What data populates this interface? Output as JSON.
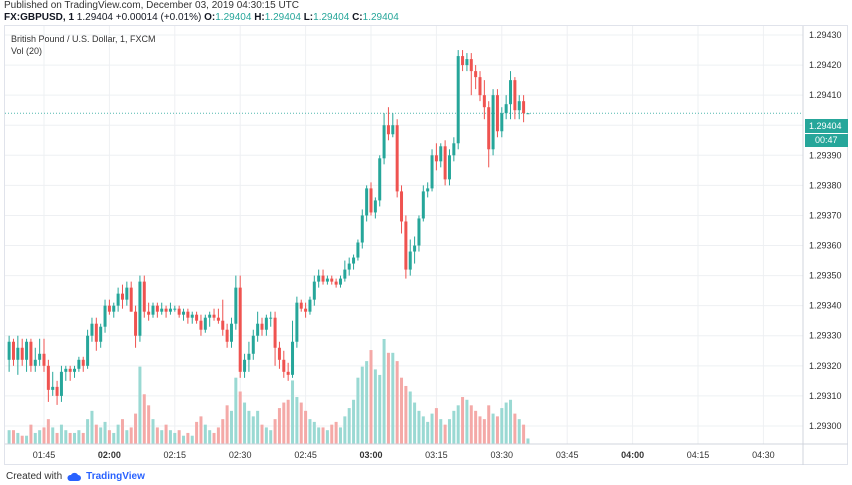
{
  "published": "Published on TradingView.com, December 03, 2019 04:30:15 UTC",
  "quote": {
    "symbol": "FX:GBPUSD, 1",
    "last": "1.29404",
    "change": "+0.00014 (+0.01%)",
    "o_label": "O:",
    "o": "1.29404",
    "h_label": "H:",
    "h": "1.29404",
    "l_label": "L:",
    "l": "1.29404",
    "c_label": "C:",
    "c": "1.29404"
  },
  "footer": {
    "created_with": "Created with",
    "brand": "TradingView"
  },
  "colors": {
    "up": "#26a69a",
    "down": "#ef5350",
    "vol_up": "#9ad9d3",
    "vol_down": "#f4a9a7",
    "grid": "#eef0f3"
  },
  "price_tag": "1.29404",
  "countdown_tag": "00:47",
  "chart_data": {
    "type": "candlestick",
    "title": "British Pound / U.S. Dollar, 1, FXCM",
    "volume_label": "Vol (20)",
    "ylim": [
      1.29294,
      1.29433
    ],
    "y_ticks": [
      "1.29300",
      "1.29310",
      "1.29320",
      "1.29330",
      "1.29340",
      "1.29350",
      "1.29360",
      "1.29370",
      "1.29380",
      "1.29390",
      "1.29400",
      "1.29410",
      "1.29420",
      "1.29430"
    ],
    "x_ticks": [
      {
        "label": "01:45",
        "bold": false,
        "minute": 0
      },
      {
        "label": "02:00",
        "bold": true,
        "minute": 15
      },
      {
        "label": "02:15",
        "bold": false,
        "minute": 30
      },
      {
        "label": "02:30",
        "bold": false,
        "minute": 45
      },
      {
        "label": "02:45",
        "bold": false,
        "minute": 60
      },
      {
        "label": "03:00",
        "bold": true,
        "minute": 75
      },
      {
        "label": "03:15",
        "bold": false,
        "minute": 90
      },
      {
        "label": "03:30",
        "bold": false,
        "minute": 105
      },
      {
        "label": "03:45",
        "bold": false,
        "minute": 120
      },
      {
        "label": "04:00",
        "bold": true,
        "minute": 135
      },
      {
        "label": "04:15",
        "bold": false,
        "minute": 150
      },
      {
        "label": "04:30",
        "bold": false,
        "minute": 165
      }
    ],
    "start_time": "01:37",
    "last_price": 1.29404,
    "candles": [
      [
        1.29322,
        1.2933,
        1.29318,
        1.29328,
        5
      ],
      [
        1.29328,
        1.29329,
        1.2932,
        1.29322,
        5
      ],
      [
        1.29322,
        1.2933,
        1.29317,
        1.29326,
        4
      ],
      [
        1.29326,
        1.29329,
        1.2932,
        1.29322,
        3
      ],
      [
        1.29322,
        1.29329,
        1.29318,
        1.29328,
        3
      ],
      [
        1.29328,
        1.29329,
        1.29318,
        1.2932,
        7
      ],
      [
        1.2932,
        1.29326,
        1.29318,
        1.29322,
        4
      ],
      [
        1.29322,
        1.29329,
        1.2932,
        1.29324,
        5
      ],
      [
        1.29324,
        1.29329,
        1.29318,
        1.2932,
        6
      ],
      [
        1.2932,
        1.29322,
        1.29308,
        1.29312,
        9
      ],
      [
        1.29312,
        1.29318,
        1.2931,
        1.29313,
        6
      ],
      [
        1.29313,
        1.29315,
        1.29307,
        1.2931,
        4
      ],
      [
        1.2931,
        1.2932,
        1.29308,
        1.29318,
        7
      ],
      [
        1.29318,
        1.2932,
        1.29315,
        1.29319,
        5
      ],
      [
        1.29319,
        1.2932,
        1.29315,
        1.29318,
        4
      ],
      [
        1.29318,
        1.2932,
        1.29316,
        1.29319,
        4
      ],
      [
        1.29319,
        1.29323,
        1.29318,
        1.29322,
        5
      ],
      [
        1.29322,
        1.29323,
        1.29318,
        1.2932,
        4
      ],
      [
        1.2932,
        1.29332,
        1.29319,
        1.2933,
        9
      ],
      [
        1.2933,
        1.29336,
        1.29328,
        1.29334,
        12
      ],
      [
        1.29334,
        1.29336,
        1.29325,
        1.29328,
        7
      ],
      [
        1.29328,
        1.29334,
        1.29326,
        1.29333,
        6
      ],
      [
        1.29333,
        1.29342,
        1.29331,
        1.2934,
        8
      ],
      [
        1.2934,
        1.29342,
        1.29337,
        1.29338,
        5
      ],
      [
        1.29338,
        1.29341,
        1.29336,
        1.2934,
        4
      ],
      [
        1.2934,
        1.29346,
        1.29338,
        1.29344,
        7
      ],
      [
        1.29344,
        1.29347,
        1.29339,
        1.29342,
        9
      ],
      [
        1.29342,
        1.29348,
        1.2934,
        1.29346,
        5
      ],
      [
        1.29346,
        1.29348,
        1.29338,
        1.29338,
        6
      ],
      [
        1.29338,
        1.2934,
        1.29326,
        1.2933,
        11
      ],
      [
        1.2933,
        1.2935,
        1.29328,
        1.29348,
        28
      ],
      [
        1.29348,
        1.2935,
        1.29336,
        1.29338,
        18
      ],
      [
        1.29338,
        1.29341,
        1.29335,
        1.29337,
        14
      ],
      [
        1.29337,
        1.29341,
        1.29336,
        1.2934,
        9
      ],
      [
        1.2934,
        1.29341,
        1.29336,
        1.29338,
        6
      ],
      [
        1.29338,
        1.29341,
        1.29337,
        1.29339,
        5
      ],
      [
        1.29339,
        1.2934,
        1.29336,
        1.29338,
        7
      ],
      [
        1.29338,
        1.29341,
        1.29337,
        1.29339,
        5
      ],
      [
        1.29339,
        1.2934,
        1.29338,
        1.29339,
        4
      ],
      [
        1.29339,
        1.2934,
        1.29336,
        1.29337,
        5
      ],
      [
        1.29337,
        1.29339,
        1.29335,
        1.29338,
        3
      ],
      [
        1.29338,
        1.29339,
        1.29334,
        1.29336,
        4
      ],
      [
        1.29336,
        1.29338,
        1.29334,
        1.29337,
        3
      ],
      [
        1.29337,
        1.29338,
        1.29334,
        1.29335,
        8
      ],
      [
        1.29335,
        1.29337,
        1.2933,
        1.29332,
        10
      ],
      [
        1.29332,
        1.29337,
        1.29331,
        1.29336,
        7
      ],
      [
        1.29336,
        1.29338,
        1.29333,
        1.29337,
        5
      ],
      [
        1.29337,
        1.29339,
        1.29335,
        1.29336,
        4
      ],
      [
        1.29336,
        1.29339,
        1.29334,
        1.29335,
        6
      ],
      [
        1.29335,
        1.29342,
        1.2933,
        1.29332,
        9
      ],
      [
        1.29332,
        1.29334,
        1.29326,
        1.29328,
        14
      ],
      [
        1.29328,
        1.29336,
        1.29326,
        1.29334,
        12
      ],
      [
        1.29334,
        1.2935,
        1.29332,
        1.29346,
        24
      ],
      [
        1.29346,
        1.2935,
        1.29316,
        1.29318,
        19
      ],
      [
        1.29318,
        1.29324,
        1.29316,
        1.29322,
        15
      ],
      [
        1.29322,
        1.29328,
        1.29318,
        1.29324,
        12
      ],
      [
        1.29324,
        1.29332,
        1.29322,
        1.2933,
        10
      ],
      [
        1.2933,
        1.29338,
        1.29328,
        1.29334,
        12
      ],
      [
        1.29334,
        1.29336,
        1.2933,
        1.29332,
        7
      ],
      [
        1.29332,
        1.29337,
        1.2933,
        1.29336,
        6
      ],
      [
        1.29336,
        1.29338,
        1.29333,
        1.29336,
        5
      ],
      [
        1.29336,
        1.29338,
        1.2932,
        1.29326,
        9
      ],
      [
        1.29326,
        1.29328,
        1.29319,
        1.29322,
        13
      ],
      [
        1.29322,
        1.29325,
        1.29316,
        1.29318,
        15
      ],
      [
        1.29318,
        1.29321,
        1.29315,
        1.29317,
        16
      ],
      [
        1.29317,
        1.29335,
        1.29316,
        1.29328,
        23
      ],
      [
        1.29328,
        1.29343,
        1.29326,
        1.29341,
        17
      ],
      [
        1.29341,
        1.29342,
        1.29338,
        1.29339,
        15
      ],
      [
        1.29339,
        1.29341,
        1.29336,
        1.29338,
        12
      ],
      [
        1.29338,
        1.29343,
        1.29337,
        1.29342,
        9
      ],
      [
        1.29342,
        1.2935,
        1.2934,
        1.29348,
        8
      ],
      [
        1.29348,
        1.29352,
        1.29346,
        1.2935,
        6
      ],
      [
        1.2935,
        1.29352,
        1.29347,
        1.29348,
        6
      ],
      [
        1.29348,
        1.2935,
        1.29347,
        1.29349,
        5
      ],
      [
        1.29349,
        1.2935,
        1.29347,
        1.29348,
        7
      ],
      [
        1.29348,
        1.29349,
        1.29346,
        1.29347,
        8
      ],
      [
        1.29347,
        1.2935,
        1.29346,
        1.29349,
        6
      ],
      [
        1.29349,
        1.29355,
        1.29348,
        1.29352,
        10
      ],
      [
        1.29352,
        1.29356,
        1.2935,
        1.29354,
        13
      ],
      [
        1.29354,
        1.29357,
        1.29352,
        1.29356,
        16
      ],
      [
        1.29356,
        1.29362,
        1.29355,
        1.29361,
        24
      ],
      [
        1.29361,
        1.29372,
        1.29359,
        1.2937,
        28
      ],
      [
        1.2937,
        1.2938,
        1.29368,
        1.29379,
        30
      ],
      [
        1.29379,
        1.29381,
        1.2937,
        1.29371,
        34
      ],
      [
        1.29371,
        1.29376,
        1.29369,
        1.29375,
        27
      ],
      [
        1.29375,
        1.2939,
        1.29373,
        1.29389,
        25
      ],
      [
        1.29389,
        1.29404,
        1.29387,
        1.294,
        38
      ],
      [
        1.294,
        1.29406,
        1.29395,
        1.29397,
        33
      ],
      [
        1.29397,
        1.29404,
        1.29396,
        1.294,
        33
      ],
      [
        1.294,
        1.29402,
        1.29376,
        1.29378,
        30
      ],
      [
        1.29378,
        1.2938,
        1.29364,
        1.29368,
        24
      ],
      [
        1.29368,
        1.2937,
        1.29349,
        1.29352,
        21
      ],
      [
        1.29352,
        1.29362,
        1.2935,
        1.29358,
        19
      ],
      [
        1.29358,
        1.29363,
        1.29354,
        1.2936,
        15
      ],
      [
        1.2936,
        1.2937,
        1.29358,
        1.29369,
        12
      ],
      [
        1.29369,
        1.2938,
        1.29368,
        1.29378,
        10
      ],
      [
        1.29378,
        1.29381,
        1.29376,
        1.29379,
        8
      ],
      [
        1.29379,
        1.29392,
        1.29378,
        1.2939,
        11
      ],
      [
        1.2939,
        1.29394,
        1.29385,
        1.29388,
        13
      ],
      [
        1.29388,
        1.29394,
        1.29386,
        1.29393,
        9
      ],
      [
        1.29393,
        1.29395,
        1.2938,
        1.29382,
        7
      ],
      [
        1.29382,
        1.29392,
        1.2938,
        1.2939,
        9
      ],
      [
        1.2939,
        1.29396,
        1.29388,
        1.29394,
        12
      ],
      [
        1.29394,
        1.29425,
        1.29392,
        1.29423,
        14
      ],
      [
        1.29423,
        1.29425,
        1.29418,
        1.2942,
        17
      ],
      [
        1.2942,
        1.29424,
        1.29418,
        1.29422,
        16
      ],
      [
        1.29422,
        1.29424,
        1.2941,
        1.29418,
        14
      ],
      [
        1.29418,
        1.2942,
        1.29412,
        1.29416,
        12
      ],
      [
        1.29416,
        1.29418,
        1.29408,
        1.2941,
        10
      ],
      [
        1.2941,
        1.29415,
        1.29402,
        1.29406,
        9
      ],
      [
        1.29406,
        1.29408,
        1.29386,
        1.29392,
        14
      ],
      [
        1.29392,
        1.29412,
        1.2939,
        1.2941,
        11
      ],
      [
        1.2941,
        1.29412,
        1.29396,
        1.29398,
        10
      ],
      [
        1.29398,
        1.29406,
        1.29396,
        1.29404,
        13
      ],
      [
        1.29404,
        1.2941,
        1.29402,
        1.29407,
        15
      ],
      [
        1.29407,
        1.29418,
        1.29402,
        1.29415,
        16
      ],
      [
        1.29415,
        1.29416,
        1.29402,
        1.29405,
        11
      ],
      [
        1.29405,
        1.2941,
        1.29402,
        1.29408,
        9
      ],
      [
        1.29408,
        1.2941,
        1.29401,
        1.29404,
        7
      ],
      [
        1.29404,
        1.29404,
        1.29404,
        1.29404,
        2
      ]
    ]
  }
}
